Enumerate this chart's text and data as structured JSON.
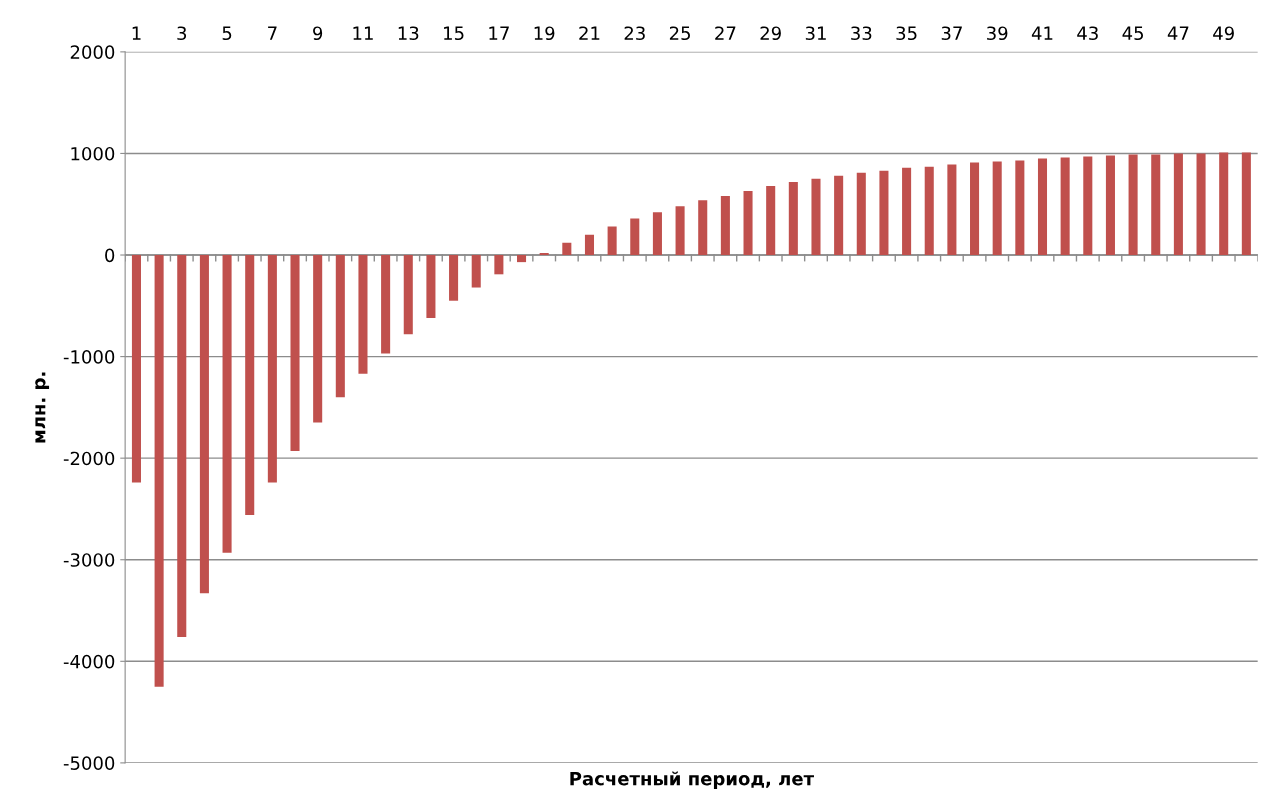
{
  "chart_data": {
    "type": "bar",
    "xlabel": "Расчетный период, лет",
    "ylabel": "млн. р.",
    "categories": [
      "1",
      null,
      "3",
      null,
      "5",
      null,
      "7",
      null,
      "9",
      null,
      "11",
      null,
      "13",
      null,
      "15",
      null,
      "17",
      null,
      "19",
      null,
      "21",
      null,
      "23",
      null,
      "25",
      null,
      "27",
      null,
      "29",
      null,
      "31",
      null,
      "33",
      null,
      "35",
      null,
      "37",
      null,
      "39",
      null,
      "41",
      null,
      "43",
      null,
      "45",
      null,
      "47",
      null,
      "49",
      null
    ],
    "values": [
      -2240,
      -4250,
      -3760,
      -3330,
      -2930,
      -2560,
      -2240,
      -1930,
      -1650,
      -1400,
      -1170,
      -970,
      -780,
      -620,
      -450,
      -320,
      -190,
      -70,
      20,
      120,
      200,
      280,
      360,
      420,
      480,
      540,
      580,
      630,
      680,
      720,
      750,
      780,
      810,
      830,
      860,
      870,
      890,
      910,
      920,
      930,
      950,
      960,
      970,
      980,
      990,
      990,
      1000,
      1000,
      1010,
      1010
    ],
    "color": "#c0504d",
    "ylim": [
      -5000,
      2000
    ],
    "yticks": [
      -5000,
      -4000,
      -3000,
      -2000,
      -1000,
      0,
      1000,
      2000
    ],
    "grid": "y",
    "legend": false
  }
}
